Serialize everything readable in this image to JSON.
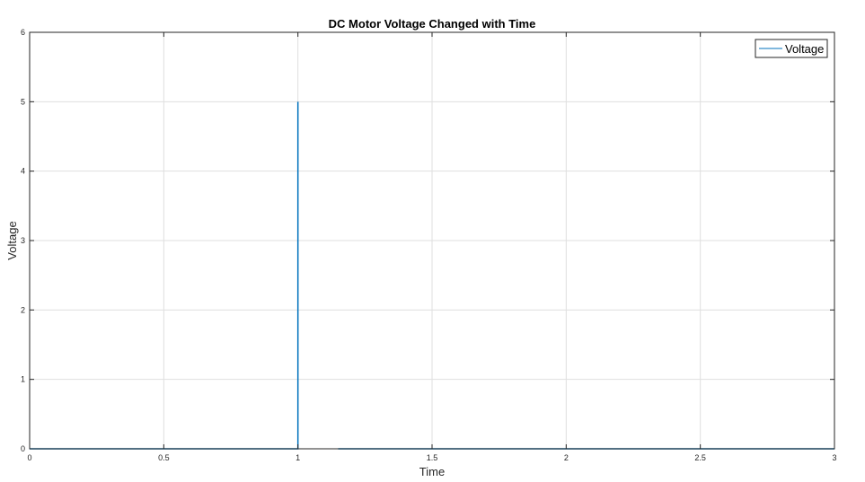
{
  "chart_data": {
    "type": "line",
    "title": "DC Motor Voltage Changed with Time",
    "xlabel": "Time",
    "ylabel": "Voltage",
    "xlim": [
      0,
      3
    ],
    "ylim": [
      0,
      6
    ],
    "x_ticks": [
      0,
      0.5,
      1,
      1.5,
      2,
      2.5,
      3
    ],
    "x_tick_labels": [
      "0",
      "0.5",
      "1",
      "1.5",
      "2",
      "2.5",
      "3"
    ],
    "y_ticks": [
      0,
      1,
      2,
      3,
      4,
      5,
      6
    ],
    "y_tick_labels": [
      "0",
      "1",
      "2",
      "3",
      "4",
      "5",
      "6"
    ],
    "grid": true,
    "legend_position": "top-right",
    "series": [
      {
        "name": "Voltage",
        "color": "#0072BD",
        "segments": [
          {
            "x": [
              0,
              1,
              1,
              1
            ],
            "y": [
              0,
              0,
              5,
              0
            ]
          },
          {
            "x": [
              1.15,
              3
            ],
            "y": [
              0,
              0
            ]
          }
        ]
      }
    ]
  }
}
